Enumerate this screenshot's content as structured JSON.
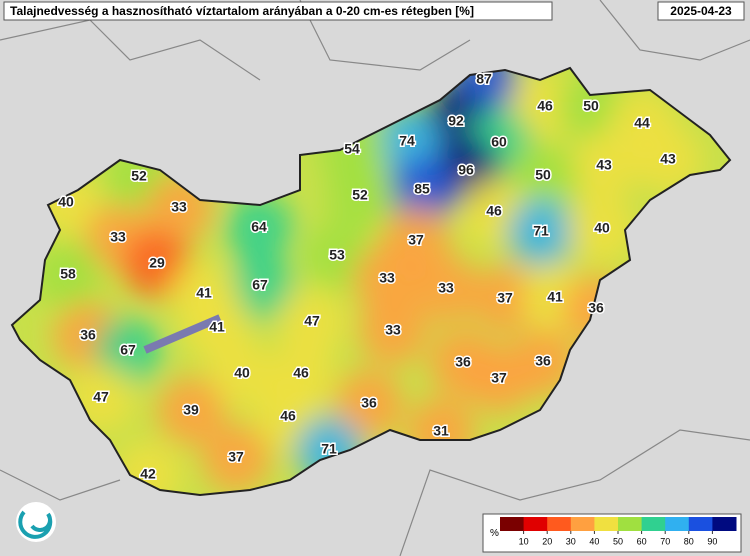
{
  "header": {
    "title": "Talajnedvesség a hasznosítható víztartalom arányában a 0-20 cm-es rétegben [%]",
    "date": "2025-04-23"
  },
  "points": [
    87,
    46,
    50,
    92,
    74,
    60,
    44,
    54,
    43,
    96,
    43,
    85,
    50,
    52,
    52,
    40,
    33,
    46,
    71,
    40,
    64,
    33,
    37,
    53,
    29,
    33,
    58,
    33,
    67,
    41,
    37,
    41,
    36,
    41,
    47,
    36,
    33,
    67,
    36,
    36,
    40,
    46,
    37,
    47,
    39,
    36,
    46,
    31,
    71,
    37,
    42
  ],
  "colorbar": {
    "label": "%",
    "range": [
      0,
      100
    ],
    "ticks": [
      10,
      20,
      30,
      40,
      50,
      60,
      70,
      80,
      90
    ],
    "colors": [
      "#7a0000",
      "#e00000",
      "#ff5a1e",
      "#ffa040",
      "#f0e040",
      "#a0e040",
      "#30d090",
      "#30b0f0",
      "#1a50e0",
      "#000a80"
    ]
  }
}
